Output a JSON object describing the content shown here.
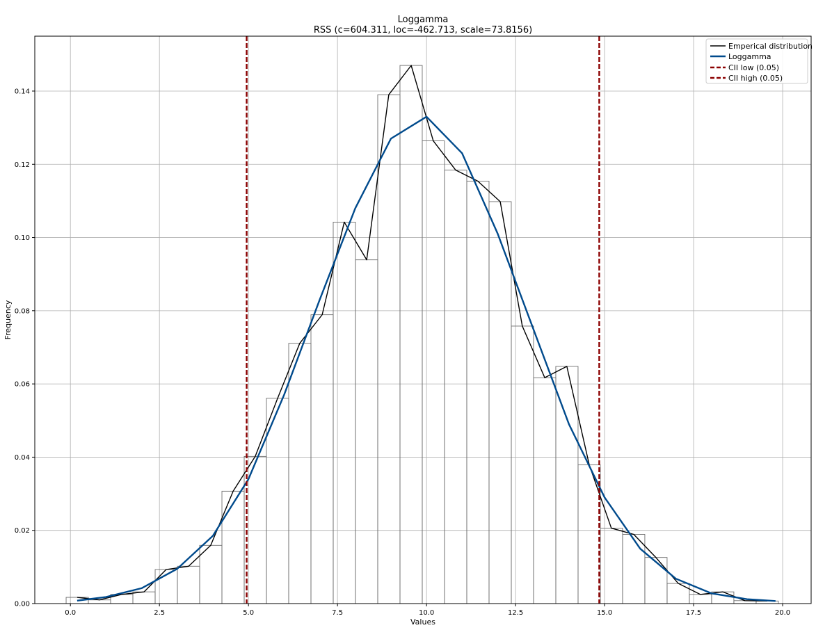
{
  "chart_data": {
    "type": "histogram",
    "title": "Loggamma",
    "subtitle": "RSS (c=604.311, loc=-462.713, scale=73.8156)",
    "xlabel": "Values",
    "ylabel": "Frequency",
    "xlim": [
      -1.0,
      20.8
    ],
    "ylim": [
      0,
      0.155
    ],
    "xticks": [
      0.0,
      2.5,
      5.0,
      7.5,
      10.0,
      12.5,
      15.0,
      17.5,
      20.0
    ],
    "xtick_labels": [
      "0.0",
      "2.5",
      "5.0",
      "7.5",
      "10.0",
      "12.5",
      "15.0",
      "17.5",
      "20.0"
    ],
    "yticks": [
      0.0,
      0.02,
      0.04,
      0.06,
      0.08,
      0.1,
      0.12,
      0.14
    ],
    "ytick_labels": [
      "0.00",
      "0.02",
      "0.04",
      "0.06",
      "0.08",
      "0.10",
      "0.12",
      "0.14"
    ],
    "grid": true,
    "legend_position": "top-right",
    "bin_edges": [
      -0.12,
      0.505,
      1.13,
      1.755,
      2.38,
      3.005,
      3.63,
      4.255,
      4.88,
      5.505,
      6.13,
      6.755,
      7.38,
      8.005,
      8.63,
      9.255,
      9.88,
      10.505,
      11.13,
      11.755,
      12.38,
      13.005,
      13.63,
      14.255,
      14.88,
      15.505,
      16.13,
      16.755,
      17.38,
      18.005,
      18.63,
      19.255,
      19.88
    ],
    "bin_values": [
      0.0017,
      0.001,
      0.0025,
      0.0032,
      0.0093,
      0.0102,
      0.0159,
      0.0307,
      0.0402,
      0.0561,
      0.0711,
      0.0789,
      0.1042,
      0.0939,
      0.139,
      0.147,
      0.1264,
      0.1184,
      0.1154,
      0.1098,
      0.0758,
      0.0617,
      0.0648,
      0.0379,
      0.0206,
      0.0189,
      0.0126,
      0.0055,
      0.0025,
      0.0032,
      0.0008,
      0.0007
    ],
    "series": [
      {
        "name": "Emperical distribution",
        "color": "#000000",
        "style": "solid",
        "x": [
          0.19,
          0.82,
          1.44,
          2.07,
          2.69,
          3.32,
          3.94,
          4.57,
          5.19,
          5.82,
          6.44,
          7.07,
          7.69,
          8.32,
          8.94,
          9.57,
          10.19,
          10.82,
          11.44,
          12.07,
          12.69,
          13.32,
          13.94,
          14.57,
          15.19,
          15.82,
          16.44,
          17.07,
          17.69,
          18.32,
          18.94,
          19.57
        ],
        "y": [
          0.0017,
          0.001,
          0.0025,
          0.0032,
          0.0093,
          0.0102,
          0.0159,
          0.0307,
          0.0402,
          0.0561,
          0.0711,
          0.0789,
          0.1042,
          0.0939,
          0.139,
          0.147,
          0.1264,
          0.1184,
          0.1154,
          0.1098,
          0.0758,
          0.0617,
          0.0648,
          0.0379,
          0.0206,
          0.0189,
          0.0126,
          0.0055,
          0.0025,
          0.0032,
          0.0008,
          0.0007
        ]
      },
      {
        "name": "Loggamma",
        "color": "#004a8c",
        "style": "solid",
        "x": [
          0.19,
          1.0,
          2.0,
          3.0,
          4.0,
          5.0,
          6.0,
          7.0,
          8.0,
          9.0,
          10.0,
          11.0,
          12.0,
          13.0,
          14.0,
          15.0,
          16.0,
          17.0,
          18.0,
          19.0,
          19.8
        ],
        "y": [
          0.0008,
          0.0018,
          0.0042,
          0.0095,
          0.0185,
          0.034,
          0.057,
          0.083,
          0.108,
          0.127,
          0.133,
          0.123,
          0.101,
          0.075,
          0.049,
          0.029,
          0.015,
          0.0068,
          0.0028,
          0.0012,
          0.0007
        ]
      }
    ],
    "vlines": [
      {
        "name": "CII low (0.05)",
        "x": 4.95,
        "color": "#8b0000",
        "style": "dashed"
      },
      {
        "name": "CII high (0.05)",
        "x": 14.85,
        "color": "#8b0000",
        "style": "dashed"
      }
    ]
  }
}
